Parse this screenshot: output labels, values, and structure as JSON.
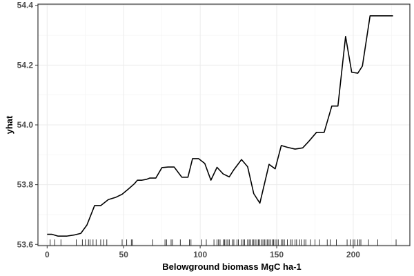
{
  "chart_data": {
    "type": "line",
    "title": "",
    "xlabel": "Belowground biomass MgC ha-1",
    "ylabel": "yhat",
    "xlim": [
      -6,
      237
    ],
    "ylim": [
      53.596,
      54.404
    ],
    "x_ticks": [
      0,
      50,
      100,
      150,
      200
    ],
    "y_ticks": [
      53.6,
      53.8,
      54.0,
      54.2,
      54.4
    ],
    "x_tick_labels": [
      "0",
      "50",
      "100",
      "150",
      "200"
    ],
    "y_tick_labels": [
      "53.6",
      "53.8",
      "54.0",
      "54.2",
      "54.4"
    ],
    "grid": true,
    "line_color": "#000000",
    "series": [
      {
        "x": [
          0,
          3,
          7,
          13,
          18,
          22,
          26,
          31,
          35,
          40,
          45,
          49,
          53,
          57,
          59,
          62,
          65,
          67,
          71,
          75,
          79,
          83,
          88,
          92,
          95,
          99,
          103,
          107,
          111,
          115,
          119,
          122,
          127,
          131,
          135,
          139,
          145,
          149,
          153,
          157,
          162,
          167,
          171,
          176,
          181,
          186,
          190,
          195,
          199,
          203,
          206,
          211,
          215,
          222,
          226
        ],
        "y": [
          53.634,
          53.634,
          53.628,
          53.628,
          53.632,
          53.637,
          53.665,
          53.73,
          53.73,
          53.75,
          53.758,
          53.768,
          53.785,
          53.803,
          53.815,
          53.815,
          53.818,
          53.822,
          53.822,
          53.857,
          53.859,
          53.859,
          53.825,
          53.825,
          53.887,
          53.887,
          53.871,
          53.815,
          53.858,
          53.836,
          53.826,
          53.85,
          53.884,
          53.86,
          53.77,
          53.738,
          53.868,
          53.853,
          53.931,
          53.925,
          53.919,
          53.923,
          53.945,
          53.975,
          53.975,
          54.063,
          54.063,
          54.296,
          54.176,
          54.173,
          54.197,
          54.365,
          54.365,
          54.365,
          54.365
        ]
      }
    ],
    "rug_x": [
      2,
      5,
      9,
      19,
      23,
      25,
      27,
      28,
      30,
      32,
      35,
      37,
      39,
      49,
      52,
      55,
      56,
      69,
      77,
      78,
      81,
      82,
      87,
      93,
      94,
      101,
      104,
      109,
      111,
      112,
      113,
      115,
      116,
      117,
      118,
      119,
      121,
      122,
      124,
      125,
      127,
      128,
      129,
      131,
      132,
      133,
      134,
      135,
      136,
      137,
      138,
      139,
      140,
      141,
      142,
      143,
      144,
      145,
      146,
      147,
      148,
      149,
      150,
      151,
      153,
      154,
      155,
      157,
      159,
      160,
      162,
      163,
      165,
      166,
      168,
      169,
      172,
      175,
      178,
      183,
      185,
      189,
      196,
      198,
      200,
      201,
      203,
      204,
      205,
      210,
      216,
      228
    ]
  }
}
